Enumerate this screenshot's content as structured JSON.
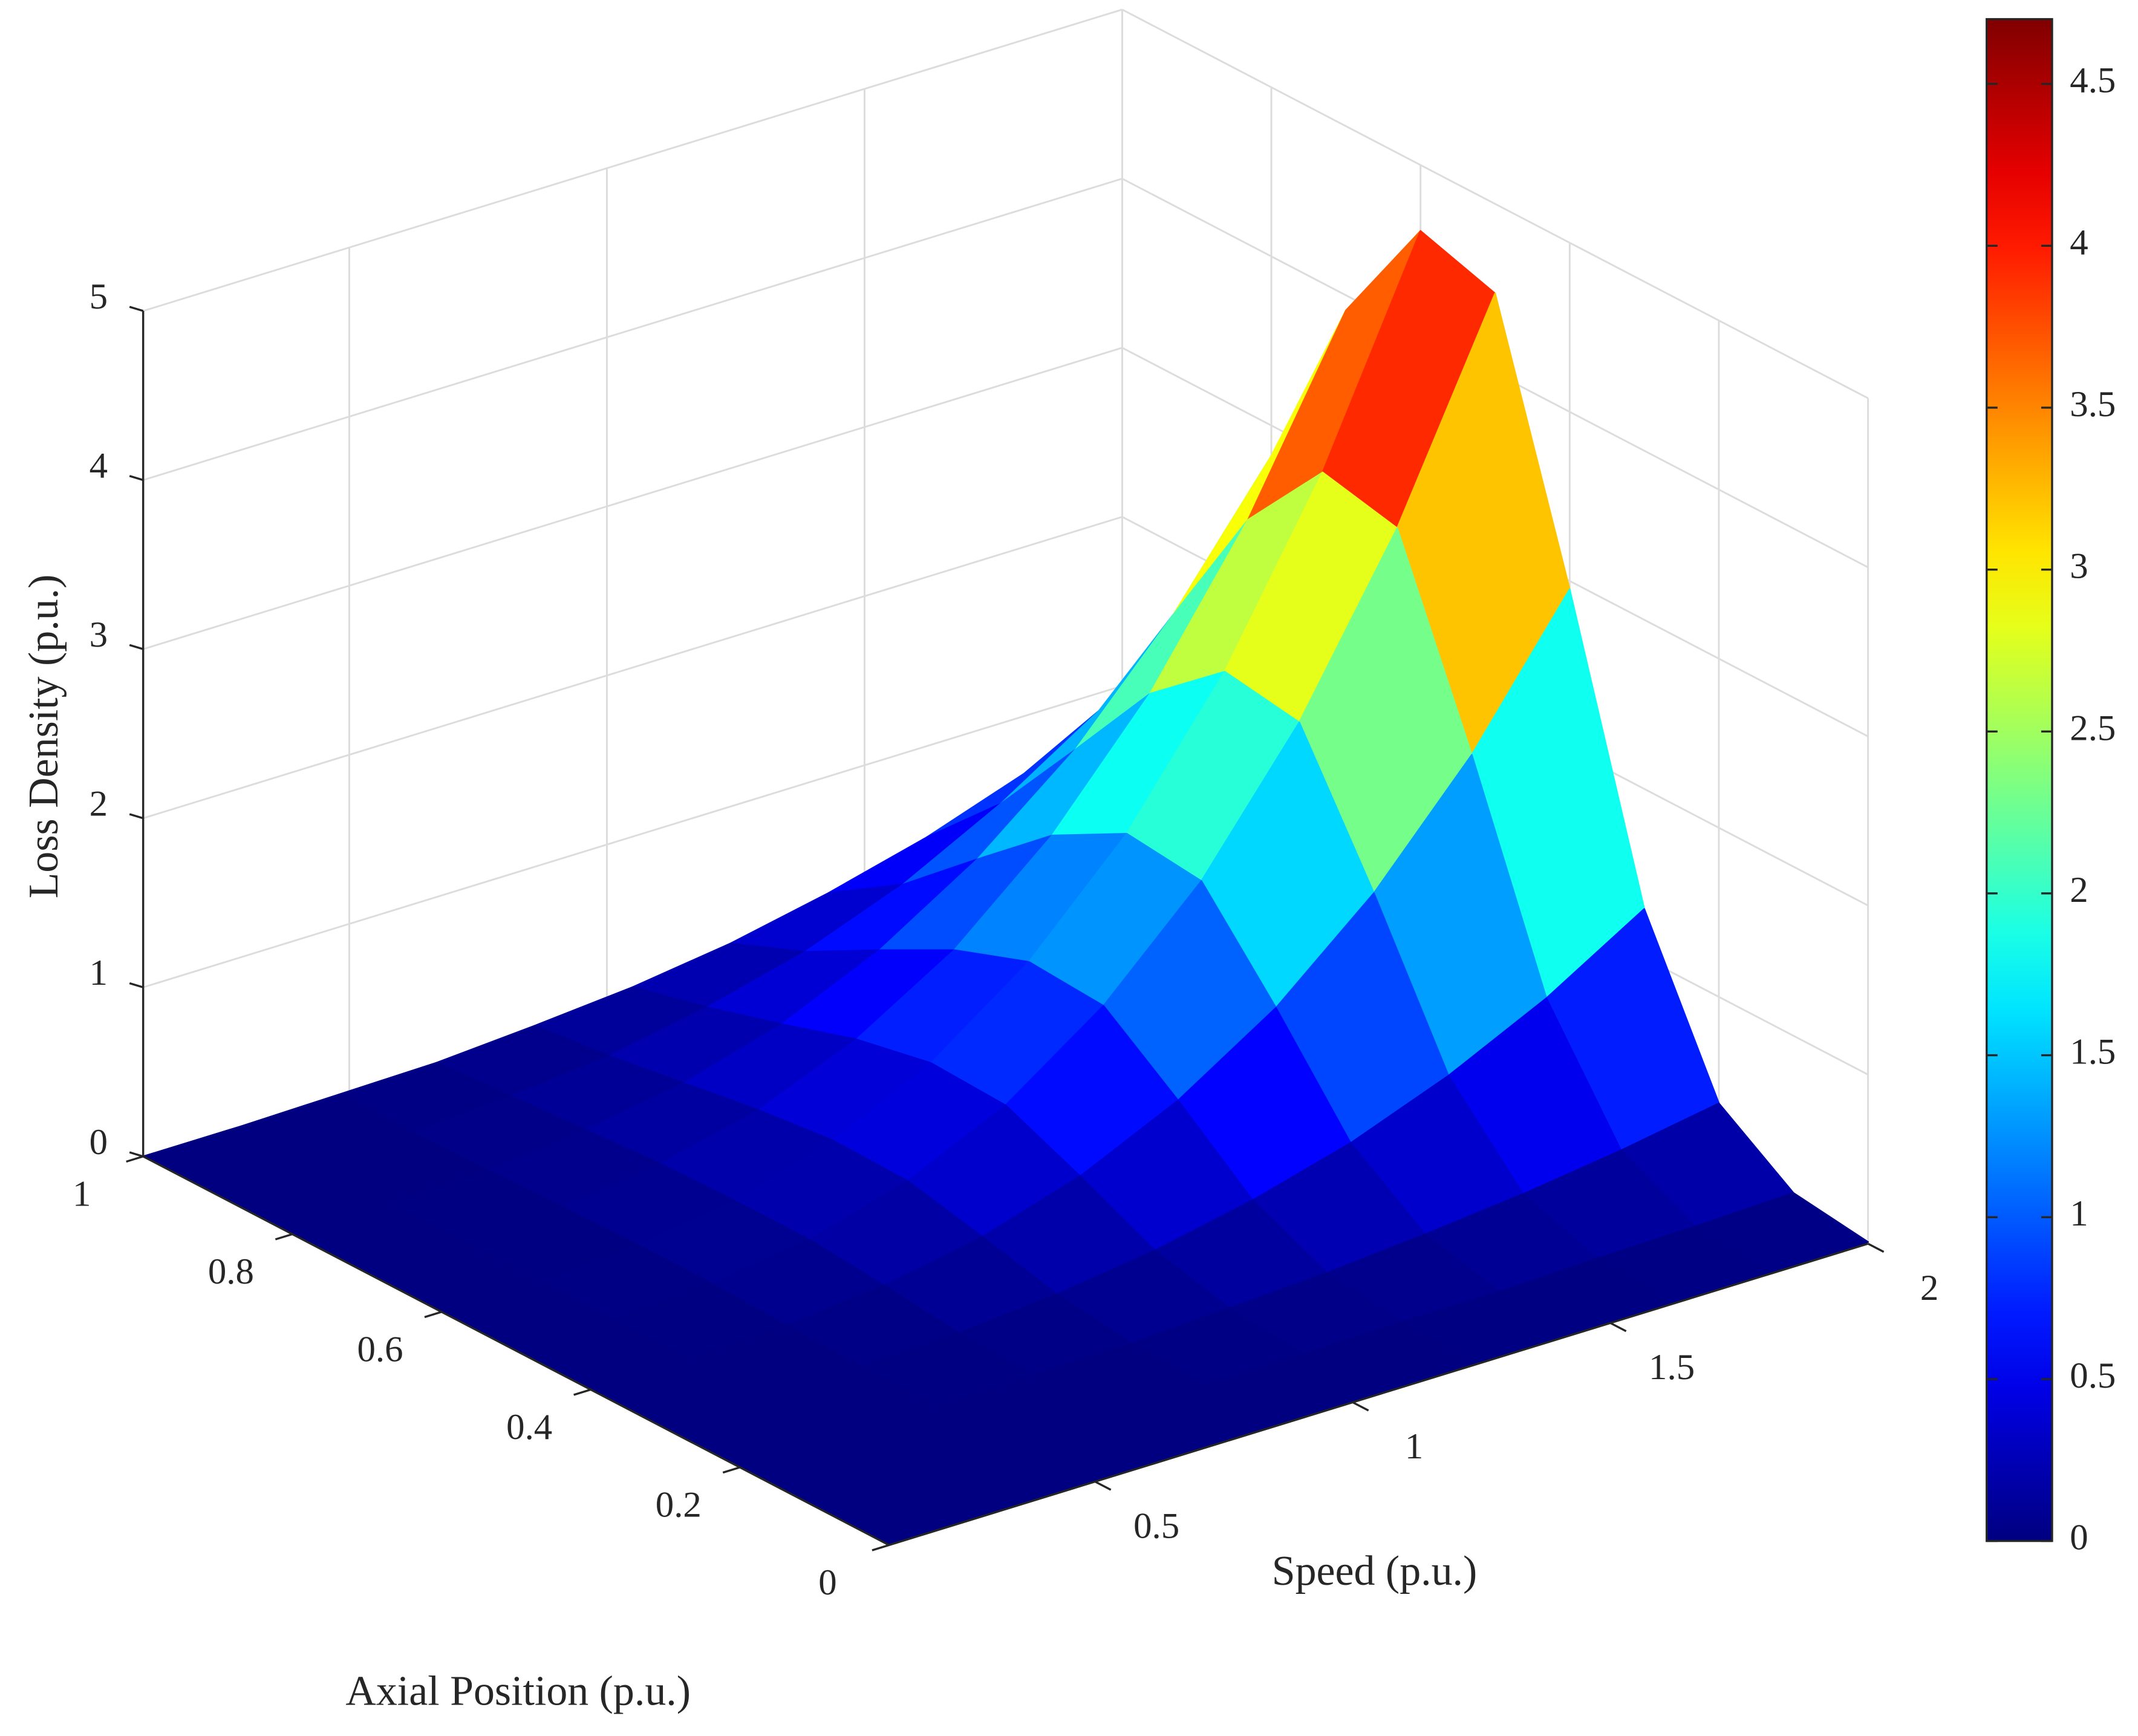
{
  "chart_data": {
    "type": "surface",
    "x_label": "Speed (p.u.)",
    "y_label": "Axial Position (p.u.)",
    "z_label": "Loss Density (p.u.)",
    "x": [
      0.1,
      0.29,
      0.48,
      0.67,
      0.86,
      1.05,
      1.24,
      1.43,
      1.62,
      1.81,
      2
    ],
    "y": [
      0,
      0.1,
      0.2,
      0.3,
      0.4,
      0.5,
      0.6,
      0.7,
      0.8,
      0.9,
      1
    ],
    "z": [
      [
        0,
        0,
        0,
        0,
        0,
        0,
        0,
        0,
        0,
        0,
        0
      ],
      [
        0,
        0,
        0,
        0,
        0,
        0,
        0,
        0,
        0,
        0,
        0
      ],
      [
        0,
        0,
        0,
        0.01,
        0.02,
        0.04,
        0.04,
        0.03,
        0.02,
        0.01,
        0.01
      ],
      [
        0,
        0,
        0.01,
        0.03,
        0.08,
        0.12,
        0.12,
        0.11,
        0.08,
        0.05,
        0.02
      ],
      [
        0,
        0,
        0.02,
        0.08,
        0.19,
        0.29,
        0.3,
        0.25,
        0.18,
        0.11,
        0.06
      ],
      [
        0,
        0.01,
        0.05,
        0.16,
        0.37,
        0.56,
        0.58,
        0.49,
        0.35,
        0.22,
        0.11
      ],
      [
        0,
        0.02,
        0.08,
        0.28,
        0.64,
        0.97,
        1,
        0.84,
        0.61,
        0.37,
        0.19
      ],
      [
        0,
        0.02,
        0.13,
        0.44,
        1.01,
        1.53,
        1.58,
        1.34,
        0.97,
        0.59,
        0.31
      ],
      [
        0.01,
        0.04,
        0.19,
        0.66,
        1.51,
        2.29,
        2.36,
        2,
        1.44,
        0.89,
        0.46
      ],
      [
        0.01,
        0.05,
        0.27,
        0.94,
        2.15,
        3.26,
        3.36,
        2.85,
        2.06,
        1.26,
        0.66
      ],
      [
        0.01,
        0.07,
        0.37,
        1.29,
        2.95,
        4.47,
        4.61,
        3.91,
        2.82,
        1.73,
        0.9
      ]
    ],
    "xlim": [
      0.1,
      2
    ],
    "xticks": [
      0.5,
      1,
      1.5,
      2
    ],
    "ylim": [
      0,
      1
    ],
    "yticks": [
      0,
      0.2,
      0.4,
      0.6,
      0.8,
      1
    ],
    "zlim": [
      0,
      5
    ],
    "zticks": [
      0,
      1,
      2,
      3,
      4,
      5
    ],
    "colormap": "jet",
    "clim": [
      0,
      4.7
    ],
    "cticks": [
      0,
      0.5,
      1,
      1.5,
      2,
      2.5,
      3,
      3.5,
      4,
      4.5
    ],
    "grid": true
  }
}
